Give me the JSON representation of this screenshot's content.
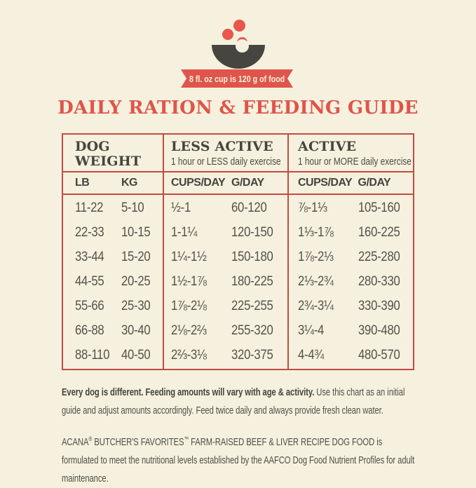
{
  "banner": {
    "text": "8 fl. oz cup is 120 g of food"
  },
  "title": "DAILY RATION & FEEDING GUIDE",
  "table": {
    "groups": [
      {
        "label_line1": "DOG",
        "label_line2": "WEIGHT",
        "sublabel": ""
      },
      {
        "label": "LESS ACTIVE",
        "sublabel": "1 hour or LESS daily exercise"
      },
      {
        "label": "ACTIVE",
        "sublabel": "1 hour or MORE daily exercise"
      }
    ],
    "columns": [
      "LB",
      "KG",
      "CUPS/DAY",
      "G/DAY",
      "CUPS/DAY",
      "G/DAY"
    ],
    "rows": [
      [
        "11-22",
        "5-10",
        "½-1",
        "60-120",
        "⅞-1⅓",
        "105-160"
      ],
      [
        "22-33",
        "10-15",
        "1-1¼",
        "120-150",
        "1⅓-1⅞",
        "160-225"
      ],
      [
        "33-44",
        "15-20",
        "1¼-1½",
        "150-180",
        "1⅞-2⅓",
        "225-280"
      ],
      [
        "44-55",
        "20-25",
        "1½-1⅞",
        "180-225",
        "2⅓-2¾",
        "280-330"
      ],
      [
        "55-66",
        "25-30",
        "1⅞-2⅛",
        "225-255",
        "2¾-3¼",
        "330-390"
      ],
      [
        "66-88",
        "30-40",
        "2⅛-2⅔",
        "255-320",
        "3¼-4",
        "390-480"
      ],
      [
        "88-110",
        "40-50",
        "2⅔-3⅛",
        "320-375",
        "4-4¾",
        "480-570"
      ]
    ]
  },
  "notes": {
    "p1_bold": "Every dog is different. Feeding amounts will vary with age & activity.",
    "p1_rest": " Use this chart as an initial guide and adjust amounts accordingly. Feed twice daily and always provide fresh clean water.",
    "p2_brand": "ACANA",
    "p2_reg": "®",
    "p2_mid": " BUTCHER'S FAVORITES",
    "p2_tm": "™",
    "p2_rest": " FARM-RAISED BEEF & LIVER RECIPE DOG FOOD is formulated to meet the nutritional levels established by the AAFCO Dog Food Nutrient Profiles for adult maintenance."
  },
  "colors": {
    "background": "#f5f1de",
    "accent_red": "#e0544b",
    "border_red": "#c34b43",
    "bowl_charcoal": "#46453f",
    "text_dark": "#45443e",
    "text_body": "#53524a"
  }
}
